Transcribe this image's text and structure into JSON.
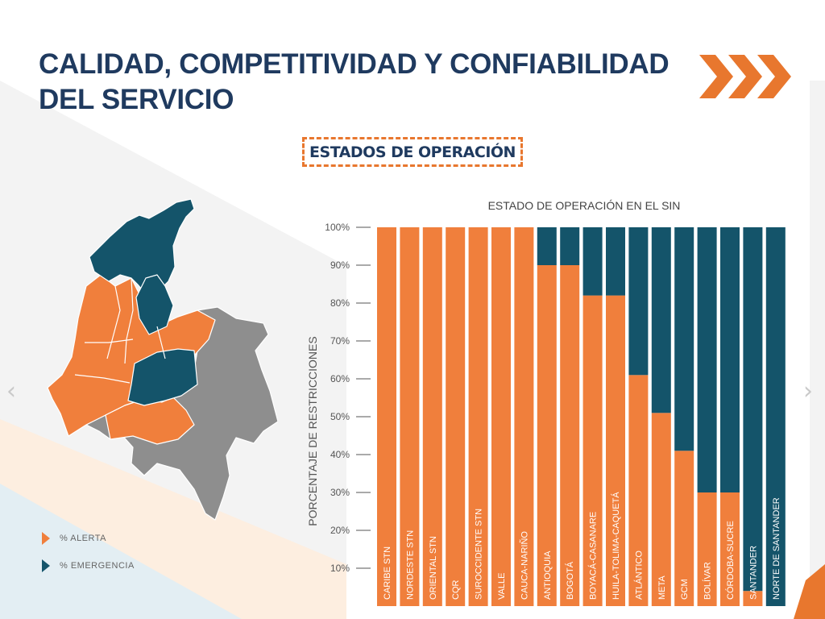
{
  "slide": {
    "title_line1": "CALIDAD, COMPETITIVIDAD Y CONFIABILIDAD",
    "title_line2": "DEL SERVICIO",
    "section_label": "ESTADOS DE OPERACIÓN",
    "prev_glyph": "‹",
    "next_glyph": "›"
  },
  "legend": {
    "alert_label": "% ALERTA",
    "emergency_label": "% EMERGENCIA"
  },
  "colors": {
    "orange": "#f07f3c",
    "navy": "#14546a",
    "gray": "#8e8e8e",
    "title": "#1f3a5f",
    "accent": "#e8772e"
  },
  "chart_data": {
    "type": "bar",
    "stacked": true,
    "title": "ESTADO DE OPERACIÓN EN EL SIN",
    "ylabel": "PORCENTAJE DE RESTRICCIONES",
    "xlabel": "",
    "ylim": [
      0,
      100
    ],
    "yticks": [
      "100%",
      "90%",
      "80%",
      "70%",
      "60%",
      "50%",
      "40%",
      "30%",
      "20%",
      "10%"
    ],
    "categories": [
      "CARIBE STN",
      "NORDESTE STN",
      "ORIENTAL STN",
      "CQR",
      "SUROCCIDENTE STN",
      "VALLE",
      "CAUCA-NARIÑO",
      "ANTIOQUIA",
      "BOGOTÁ",
      "BOYACÁ-CASANARE",
      "HUILA-TOLIMA-CAQUETÁ",
      "ATLÁNTICO",
      "META",
      "GCM",
      "BOLÍVAR",
      "CÓRDOBA-SUCRE",
      "SANTANDER",
      "NORTE DE SANTANDER"
    ],
    "series": [
      {
        "name": "% ALERTA",
        "color": "#f07f3c",
        "values": [
          100,
          100,
          100,
          100,
          100,
          100,
          100,
          90,
          90,
          82,
          82,
          61,
          51,
          41,
          30,
          30,
          4,
          0
        ]
      },
      {
        "name": "% EMERGENCIA",
        "color": "#14546a",
        "values": [
          0,
          0,
          0,
          0,
          0,
          0,
          0,
          10,
          10,
          18,
          18,
          39,
          49,
          59,
          70,
          70,
          96,
          100
        ]
      }
    ]
  }
}
